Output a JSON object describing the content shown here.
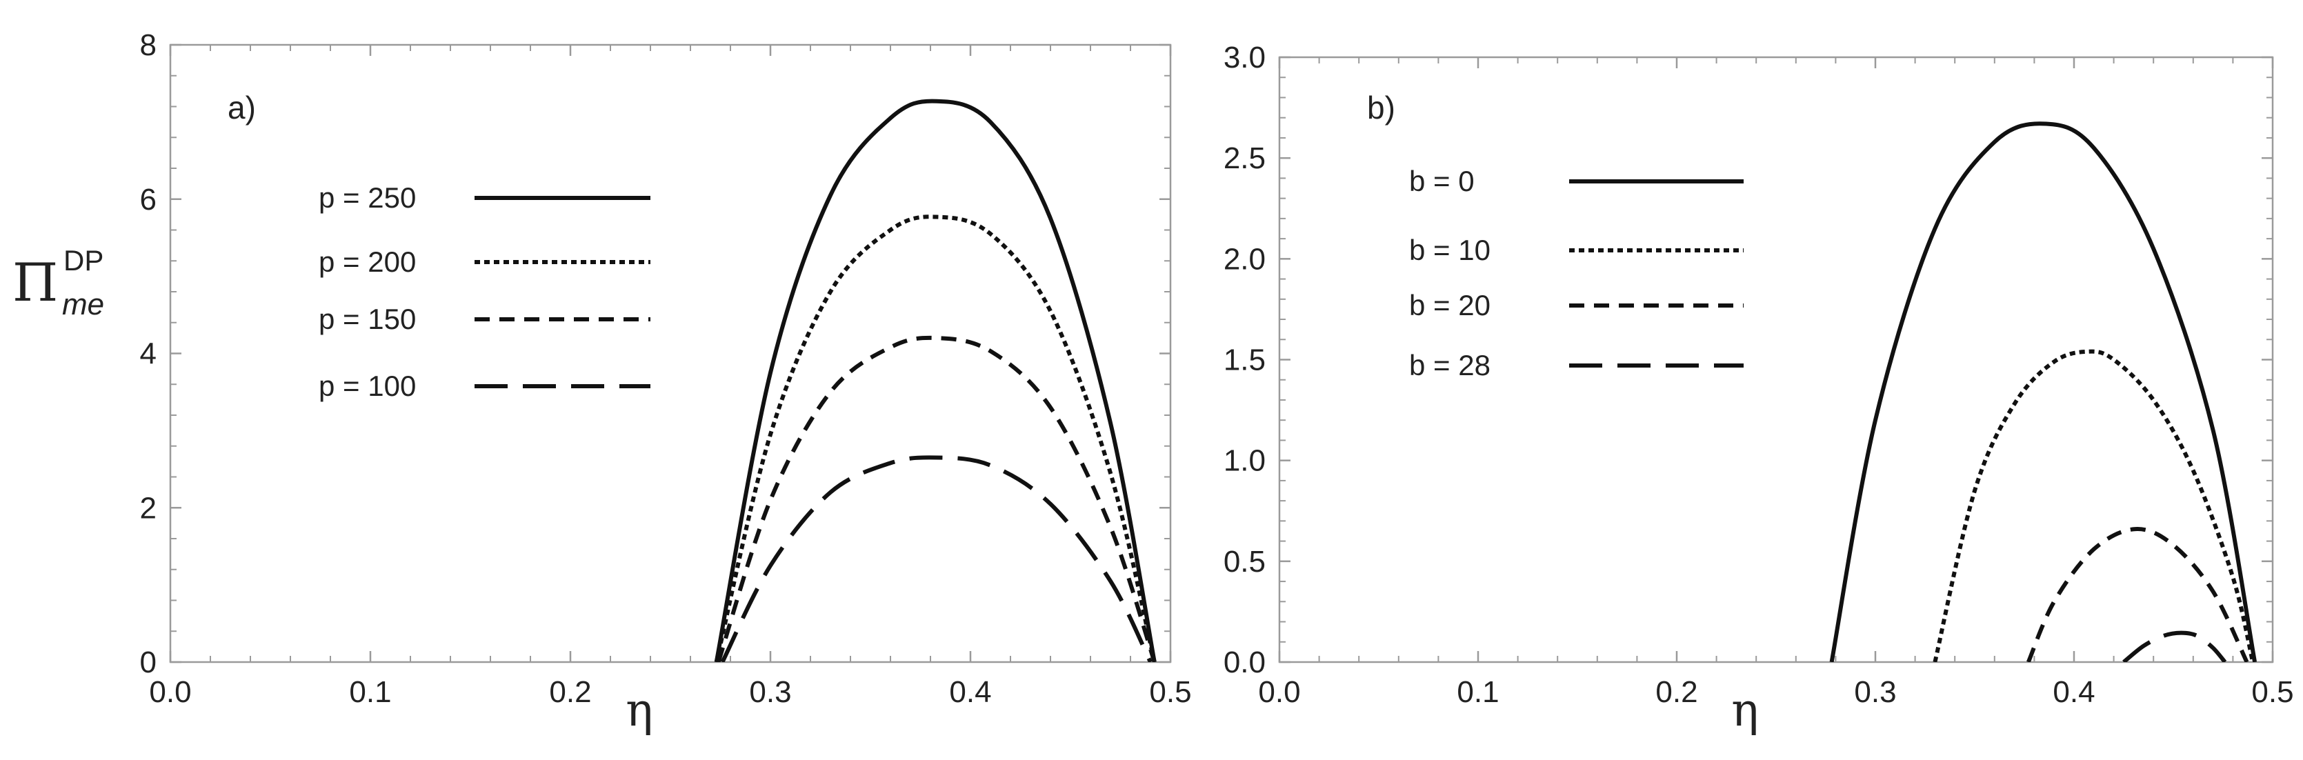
{
  "chart_data": [
    {
      "type": "line",
      "panel_label": "a)",
      "xlabel": "η",
      "ylabel": {
        "symbol": "Π",
        "superscript": "DP",
        "subscript": "me"
      },
      "xlim": [
        0.0,
        0.5
      ],
      "ylim": [
        0,
        8
      ],
      "xticks": [
        "0.0",
        "0.1",
        "0.2",
        "0.3",
        "0.4",
        "0.5"
      ],
      "yticks": [
        "0",
        "2",
        "4",
        "6",
        "8"
      ],
      "legend_position": "upper-left",
      "series": [
        {
          "name": "p = 250",
          "style": "solid",
          "x": [
            0.273,
            0.3,
            0.33,
            0.36,
            0.383,
            0.41,
            0.44,
            0.47,
            0.492
          ],
          "y": [
            0,
            3.75,
            6.05,
            7.05,
            7.27,
            7.0,
            5.75,
            3.1,
            0
          ]
        },
        {
          "name": "p = 200",
          "style": "dotted",
          "x": [
            0.273,
            0.3,
            0.33,
            0.36,
            0.383,
            0.41,
            0.44,
            0.47,
            0.492
          ],
          "y": [
            0,
            2.95,
            4.8,
            5.6,
            5.77,
            5.55,
            4.55,
            2.45,
            0
          ]
        },
        {
          "name": "p = 150",
          "style": "dashed",
          "x": [
            0.274,
            0.3,
            0.33,
            0.36,
            0.383,
            0.41,
            0.44,
            0.47,
            0.492
          ],
          "y": [
            0,
            2.1,
            3.5,
            4.08,
            4.2,
            4.03,
            3.3,
            1.75,
            0
          ]
        },
        {
          "name": "p = 100",
          "style": "long-dashed",
          "x": [
            0.276,
            0.3,
            0.33,
            0.36,
            0.383,
            0.41,
            0.44,
            0.47,
            0.49
          ],
          "y": [
            0,
            1.25,
            2.2,
            2.58,
            2.65,
            2.55,
            2.05,
            1.05,
            0
          ]
        }
      ]
    },
    {
      "type": "line",
      "panel_label": "b)",
      "xlabel": "η",
      "ylabel": "",
      "xlim": [
        0.0,
        0.5
      ],
      "ylim": [
        0.0,
        3.0
      ],
      "xticks": [
        "0.0",
        "0.1",
        "0.2",
        "0.3",
        "0.4",
        "0.5"
      ],
      "yticks": [
        "0.0",
        "0.5",
        "1.0",
        "1.5",
        "2.0",
        "2.5",
        "3.0"
      ],
      "legend_position": "upper-left",
      "series": [
        {
          "name": "b = 0",
          "style": "solid",
          "x": [
            0.278,
            0.3,
            0.33,
            0.36,
            0.386,
            0.41,
            0.44,
            0.47,
            0.491
          ],
          "y": [
            0,
            1.2,
            2.15,
            2.58,
            2.67,
            2.55,
            2.05,
            1.15,
            0
          ]
        },
        {
          "name": "b = 10",
          "style": "dotted",
          "x": [
            0.33,
            0.35,
            0.37,
            0.39,
            0.407,
            0.42,
            0.44,
            0.46,
            0.48,
            0.49
          ],
          "y": [
            0,
            0.85,
            1.28,
            1.49,
            1.54,
            1.5,
            1.3,
            0.95,
            0.42,
            0
          ]
        },
        {
          "name": "b = 20",
          "style": "dashed",
          "x": [
            0.377,
            0.39,
            0.41,
            0.431,
            0.45,
            0.47,
            0.487
          ],
          "y": [
            0,
            0.3,
            0.56,
            0.66,
            0.58,
            0.35,
            0
          ]
        },
        {
          "name": "b = 28",
          "style": "long-dashed",
          "x": [
            0.425,
            0.435,
            0.445,
            0.454,
            0.462,
            0.47,
            0.476
          ],
          "y": [
            0,
            0.08,
            0.13,
            0.145,
            0.13,
            0.07,
            0
          ]
        }
      ]
    }
  ]
}
